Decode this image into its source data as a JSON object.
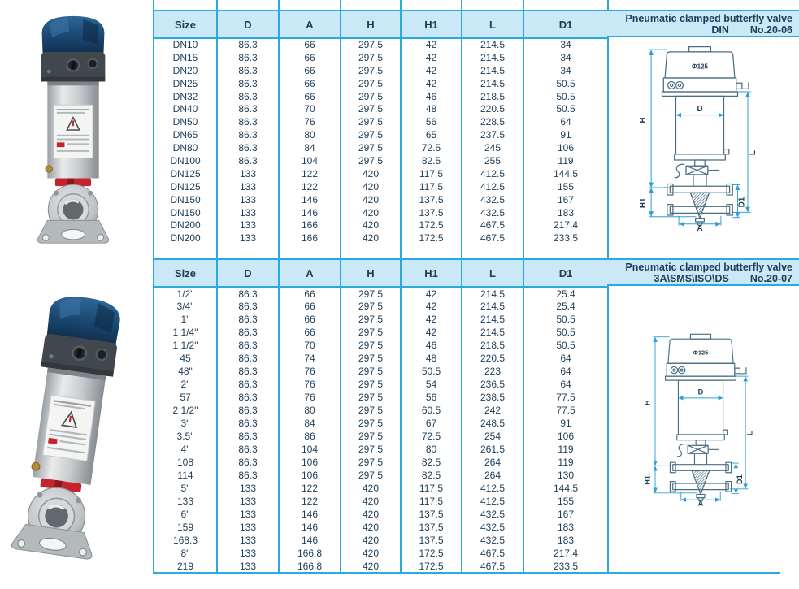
{
  "page": {
    "background": "#ffffff"
  },
  "colors": {
    "accent_border": "#29abe2",
    "header_background": "#cbe8f6",
    "text": "#1c3d58",
    "drawing_outline": "#4a6e82",
    "drawing_dimension": "#2f9fd4",
    "photo_dome_blue": "#1b4a75",
    "photo_band_red": "#c5242c"
  },
  "tables": [
    {
      "title": "Pneumatic clamped butterfly valve",
      "standard": "DIN",
      "code": "No.20-06",
      "columns": [
        "Size",
        "D",
        "A",
        "H",
        "H1",
        "L",
        "D1"
      ],
      "rows": [
        [
          "DN10",
          "86.3",
          "66",
          "297.5",
          "42",
          "214.5",
          "34"
        ],
        [
          "DN15",
          "86.3",
          "66",
          "297.5",
          "42",
          "214.5",
          "34"
        ],
        [
          "DN20",
          "86.3",
          "66",
          "297.5",
          "42",
          "214.5",
          "34"
        ],
        [
          "DN25",
          "86.3",
          "66",
          "297.5",
          "42",
          "214.5",
          "50.5"
        ],
        [
          "DN32",
          "86.3",
          "66",
          "297.5",
          "46",
          "218.5",
          "50.5"
        ],
        [
          "DN40",
          "86.3",
          "70",
          "297.5",
          "48",
          "220.5",
          "50.5"
        ],
        [
          "DN50",
          "86.3",
          "76",
          "297.5",
          "56",
          "228.5",
          "64"
        ],
        [
          "DN65",
          "86.3",
          "80",
          "297.5",
          "65",
          "237.5",
          "91"
        ],
        [
          "DN80",
          "86.3",
          "84",
          "297.5",
          "72.5",
          "245",
          "106"
        ],
        [
          "DN100",
          "86.3",
          "104",
          "297.5",
          "82.5",
          "255",
          "119"
        ],
        [
          "DN125",
          "133",
          "122",
          "420",
          "117.5",
          "412.5",
          "144.5"
        ],
        [
          "DN125",
          "133",
          "122",
          "420",
          "117.5",
          "412.5",
          "155"
        ],
        [
          "DN150",
          "133",
          "146",
          "420",
          "137.5",
          "432.5",
          "167"
        ],
        [
          "DN150",
          "133",
          "146",
          "420",
          "137.5",
          "432.5",
          "183"
        ],
        [
          "DN200",
          "133",
          "166",
          "420",
          "172.5",
          "467.5",
          "217.4"
        ],
        [
          "DN200",
          "133",
          "166",
          "420",
          "172.5",
          "467.5",
          "233.5"
        ]
      ]
    },
    {
      "title": "Pneumatic clamped butterfly valve",
      "standard": "3A\\SMS\\ISO\\DS",
      "code": "No.20-07",
      "columns": [
        "Size",
        "D",
        "A",
        "H",
        "H1",
        "L",
        "D1"
      ],
      "rows": [
        [
          "1/2\"",
          "86.3",
          "66",
          "297.5",
          "42",
          "214.5",
          "25.4"
        ],
        [
          "3/4\"",
          "86.3",
          "66",
          "297.5",
          "42",
          "214.5",
          "25.4"
        ],
        [
          "1\"",
          "86.3",
          "66",
          "297.5",
          "42",
          "214.5",
          "50.5"
        ],
        [
          "1 1/4\"",
          "86.3",
          "66",
          "297.5",
          "42",
          "214.5",
          "50.5"
        ],
        [
          "1 1/2\"",
          "86.3",
          "70",
          "297.5",
          "46",
          "218.5",
          "50.5"
        ],
        [
          "45",
          "86.3",
          "74",
          "297.5",
          "48",
          "220.5",
          "64"
        ],
        [
          "48\"",
          "86.3",
          "76",
          "297.5",
          "50.5",
          "223",
          "64"
        ],
        [
          "2\"",
          "86.3",
          "76",
          "297.5",
          "54",
          "236.5",
          "64"
        ],
        [
          "57",
          "86.3",
          "76",
          "297.5",
          "56",
          "238.5",
          "77.5"
        ],
        [
          "2 1/2\"",
          "86.3",
          "80",
          "297.5",
          "60.5",
          "242",
          "77.5"
        ],
        [
          "3\"",
          "86.3",
          "84",
          "297.5",
          "67",
          "248.5",
          "91"
        ],
        [
          "3.5\"",
          "86.3",
          "86",
          "297.5",
          "72.5",
          "254",
          "106"
        ],
        [
          "4\"",
          "86.3",
          "104",
          "297.5",
          "80",
          "261.5",
          "119"
        ],
        [
          "108",
          "86.3",
          "106",
          "297.5",
          "82.5",
          "264",
          "119"
        ],
        [
          "114",
          "86.3",
          "106",
          "297.5",
          "82.5",
          "264",
          "130"
        ],
        [
          "5\"",
          "133",
          "122",
          "420",
          "117.5",
          "412.5",
          "144.5"
        ],
        [
          "133",
          "133",
          "122",
          "420",
          "117.5",
          "412.5",
          "155"
        ],
        [
          "6\"",
          "133",
          "146",
          "420",
          "137.5",
          "432.5",
          "167"
        ],
        [
          "159",
          "133",
          "146",
          "420",
          "137.5",
          "432.5",
          "183"
        ],
        [
          "168.3",
          "133",
          "146",
          "420",
          "137.5",
          "432.5",
          "183"
        ],
        [
          "8\"",
          "133",
          "166.8",
          "420",
          "172.5",
          "467.5",
          "217.4"
        ],
        [
          "219",
          "133",
          "166.8",
          "420",
          "172.5",
          "467.5",
          "233.5"
        ]
      ]
    }
  ],
  "drawing": {
    "phi": "Φ125",
    "d": "D",
    "h": "H",
    "h1": "H1",
    "l": "L",
    "d1": "D1",
    "a": "A"
  }
}
